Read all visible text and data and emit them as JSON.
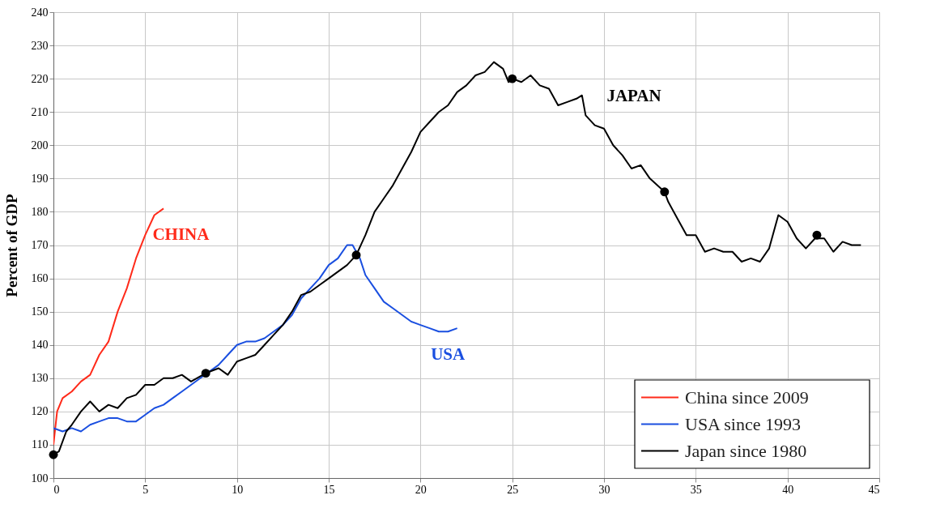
{
  "chart_data": {
    "type": "line",
    "ylabel": "Percent of GDP",
    "xlim": [
      0,
      45
    ],
    "xticks": [
      0,
      5,
      10,
      15,
      20,
      25,
      30,
      35,
      40,
      45
    ],
    "ylim": [
      100,
      240
    ],
    "yticks": [
      100,
      110,
      120,
      130,
      140,
      150,
      160,
      170,
      180,
      190,
      200,
      210,
      220,
      230,
      240
    ],
    "grid": true,
    "legend": "bottom right",
    "line_style": "solid",
    "annotations": [
      "CHINA",
      "USA",
      "JAPAN"
    ],
    "series": [
      {
        "name": "China since 2009",
        "color": "#ff2a1a",
        "x": [
          0,
          0.2,
          0.5,
          1,
          1.5,
          2,
          2.5,
          3,
          3.5,
          4,
          4.5,
          5,
          5.5,
          6
        ],
        "values": [
          110,
          120,
          124,
          126,
          129,
          131,
          137,
          141,
          150,
          157,
          166,
          173,
          179,
          181
        ]
      },
      {
        "name": "USA since 1993",
        "color": "#1a4fe0",
        "x": [
          0,
          0.5,
          1,
          1.5,
          2,
          2.5,
          3,
          3.5,
          4,
          4.5,
          5,
          5.5,
          6,
          6.5,
          7,
          7.5,
          8,
          8.5,
          9,
          9.5,
          10,
          10.5,
          11,
          11.5,
          12,
          12.5,
          13,
          13.5,
          14,
          14.5,
          15,
          15.5,
          16,
          16.3,
          16.7,
          17,
          17.5,
          18,
          18.5,
          19,
          19.5,
          20,
          20.5,
          21,
          21.5,
          22
        ],
        "values": [
          115,
          114,
          115,
          114,
          116,
          117,
          118,
          118,
          117,
          117,
          119,
          121,
          122,
          124,
          126,
          128,
          130,
          132,
          134,
          137,
          140,
          141,
          141,
          142,
          144,
          146,
          149,
          154,
          157,
          160,
          164,
          166,
          170,
          170,
          166,
          161,
          157,
          153,
          151,
          149,
          147,
          146,
          145,
          144,
          144,
          145
        ]
      },
      {
        "name": "Japan since 1980",
        "color": "#000000",
        "x": [
          0,
          0.3,
          0.7,
          1,
          1.5,
          2,
          2.5,
          3,
          3.5,
          4,
          4.5,
          5,
          5.5,
          6,
          6.5,
          7,
          7.5,
          8.3,
          9,
          9.5,
          10,
          10.5,
          11,
          11.5,
          12,
          12.5,
          13,
          13.5,
          14,
          14.5,
          15,
          15.5,
          16,
          16.5,
          17,
          17.5,
          18,
          18.5,
          19,
          19.5,
          20,
          20.5,
          21,
          21.5,
          22,
          22.5,
          23,
          23.5,
          24,
          24.5,
          24.8,
          25,
          25.5,
          26,
          26.5,
          27,
          27.5,
          28,
          28.5,
          28.8,
          29,
          29.5,
          30,
          30.5,
          31,
          31.5,
          32,
          32.5,
          33.3,
          33.5,
          34,
          34.5,
          35,
          35.5,
          36,
          36.5,
          37,
          37.5,
          38,
          38.5,
          39,
          39.5,
          40,
          40.5,
          41,
          41.5,
          42,
          42.5,
          43,
          43.5,
          44
        ],
        "values": [
          107,
          108,
          114,
          116,
          120,
          123,
          120,
          122,
          121,
          124,
          125,
          128,
          128,
          130,
          130,
          131,
          129,
          131.5,
          133,
          131,
          135,
          136,
          137,
          140,
          143,
          146,
          150,
          155,
          156,
          158,
          160,
          162,
          164,
          167,
          173,
          180,
          184,
          188,
          193,
          198,
          204,
          207,
          210,
          212,
          216,
          218,
          221,
          222,
          225,
          223,
          219,
          220,
          219,
          221,
          218,
          217,
          212,
          213,
          214,
          215,
          209,
          206,
          205,
          200,
          197,
          193,
          194,
          190,
          186,
          183,
          178,
          173,
          173,
          168,
          169,
          168,
          168,
          165,
          166,
          165,
          169,
          179,
          177,
          172,
          169,
          172,
          172,
          168,
          171,
          170,
          170
        ]
      },
      {
        "type": "scatter",
        "color": "#000000",
        "marker": "circle",
        "x": [
          0,
          8.3,
          16.5,
          25,
          33.3,
          41.6
        ],
        "values": [
          107,
          131.5,
          167,
          220,
          186,
          173
        ]
      }
    ]
  }
}
